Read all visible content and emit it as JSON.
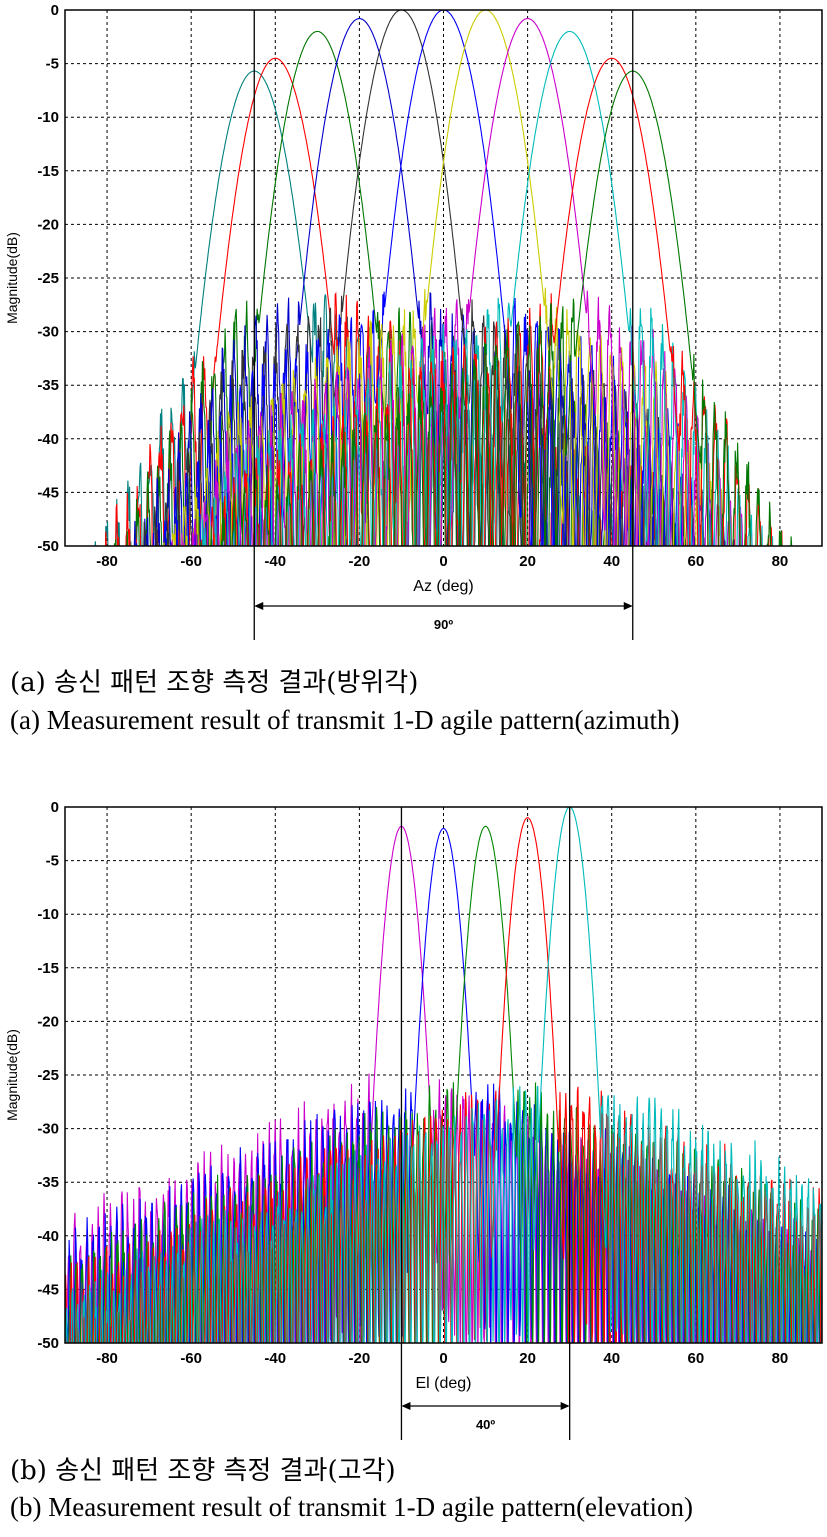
{
  "chart_data": [
    {
      "type": "line",
      "title": "",
      "xlabel": "Az (deg)",
      "ylabel": "Magnitude(dB)",
      "xlim": [
        -90,
        90
      ],
      "ylim": [
        -50,
        0
      ],
      "xticks": [
        -80,
        -60,
        -40,
        -20,
        0,
        20,
        40,
        60,
        80
      ],
      "xtick_labels": [
        "-80",
        "-60",
        "-40",
        "-20",
        "0",
        "20",
        "40",
        "60",
        "80"
      ],
      "yticks": [
        0,
        -5,
        -10,
        -15,
        -20,
        -25,
        -30,
        -35,
        -40,
        -45,
        -50
      ],
      "ytick_labels": [
        "0",
        "-5",
        "-10",
        "-15",
        "-20",
        "-25",
        "-30",
        "-35",
        "-40",
        "-45",
        "-50"
      ],
      "grid": true,
      "grid_style": "dashed",
      "series": [
        {
          "steer_angle_deg": -45,
          "peak_db": -5.7,
          "color": "#008080"
        },
        {
          "steer_angle_deg": -40,
          "peak_db": -4.5,
          "color": "#ff0000"
        },
        {
          "steer_angle_deg": -30,
          "peak_db": -2.0,
          "color": "#007700"
        },
        {
          "steer_angle_deg": -20,
          "peak_db": -0.8,
          "color": "#0000cc"
        },
        {
          "steer_angle_deg": -10,
          "peak_db": 0.0,
          "color": "#333333"
        },
        {
          "steer_angle_deg": 0,
          "peak_db": 0.0,
          "color": "#0000ff"
        },
        {
          "steer_angle_deg": 10,
          "peak_db": 0.0,
          "color": "#cccc00"
        },
        {
          "steer_angle_deg": 20,
          "peak_db": -0.8,
          "color": "#cc00cc"
        },
        {
          "steer_angle_deg": 30,
          "peak_db": -2.0,
          "color": "#00bbbb"
        },
        {
          "steer_angle_deg": 40,
          "peak_db": -4.5,
          "color": "#ff0000"
        },
        {
          "steer_angle_deg": 45,
          "peak_db": -5.7,
          "color": "#007700"
        }
      ],
      "annotation": {
        "x_from": -45,
        "x_to": 45,
        "label": "90º"
      }
    },
    {
      "type": "line",
      "title": "",
      "xlabel": "El (deg)",
      "ylabel": "Magnitude(dB)",
      "xlim": [
        -90,
        90
      ],
      "ylim": [
        -50,
        0
      ],
      "xticks": [
        -80,
        -60,
        -40,
        -20,
        0,
        20,
        40,
        60,
        80
      ],
      "xtick_labels": [
        "-80",
        "-60",
        "-40",
        "-20",
        "0",
        "20",
        "40",
        "60",
        "80"
      ],
      "yticks": [
        0,
        -5,
        -10,
        -15,
        -20,
        -25,
        -30,
        -35,
        -40,
        -45,
        -50
      ],
      "ytick_labels": [
        "0",
        "-5",
        "-10",
        "-15",
        "-20",
        "-25",
        "-30",
        "-35",
        "-40",
        "-45",
        "-50"
      ],
      "grid": true,
      "grid_style": "dashed",
      "series": [
        {
          "steer_angle_deg": -10,
          "peak_db": -1.8,
          "color": "#cc00cc"
        },
        {
          "steer_angle_deg": 0,
          "peak_db": -2.0,
          "color": "#0000ff"
        },
        {
          "steer_angle_deg": 10,
          "peak_db": -1.8,
          "color": "#008800"
        },
        {
          "steer_angle_deg": 20,
          "peak_db": -1.0,
          "color": "#ff0000"
        },
        {
          "steer_angle_deg": 30,
          "peak_db": 0.0,
          "color": "#00bbbb"
        }
      ],
      "annotation": {
        "x_from": -10,
        "x_to": 30,
        "label": "40º"
      }
    }
  ],
  "captions": {
    "a_ko": "(a) 송신 패턴 조향 측정 결과(방위각)",
    "a_en": "(a) Measurement result of transmit 1-D agile pattern(azimuth)",
    "b_ko": "(b) 송신 패턴 조향 측정 결과(고각)",
    "b_en": "(b) Measurement result of transmit 1-D agile pattern(elevation)"
  }
}
